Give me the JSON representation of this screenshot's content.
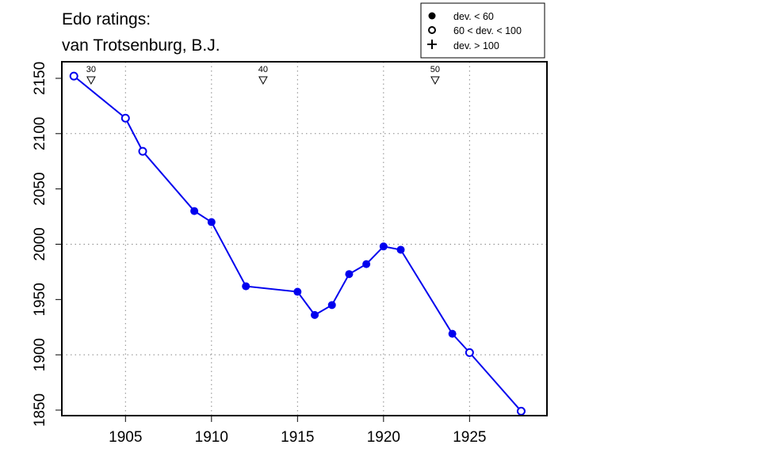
{
  "title_line1": "Edo ratings:",
  "title_line2": "van Trotsenburg, B.J.",
  "legend": {
    "items": [
      {
        "marker": "filled-circle",
        "label": "dev. < 60"
      },
      {
        "marker": "open-circle",
        "label": "60 < dev. < 100"
      },
      {
        "marker": "plus",
        "label": "dev. > 100"
      }
    ]
  },
  "colors": {
    "series": "#0000ee",
    "grid": "#888888",
    "axis": "#000000"
  },
  "chart_data": {
    "type": "line",
    "title": "Edo ratings: van Trotsenburg, B.J.",
    "xlabel": "",
    "ylabel": "",
    "xlim": [
      1901.3,
      1929.5
    ],
    "ylim": [
      1845,
      2165
    ],
    "x_ticks": [
      1905,
      1910,
      1915,
      1920,
      1925
    ],
    "y_ticks": [
      1850,
      1900,
      1950,
      2000,
      2050,
      2100,
      2150
    ],
    "grid": true,
    "legend_position": "top-right",
    "age_markers": [
      {
        "x": 1903,
        "label": "30"
      },
      {
        "x": 1913,
        "label": "40"
      },
      {
        "x": 1923,
        "label": "50"
      }
    ],
    "series": [
      {
        "points": [
          {
            "x": 1902,
            "y": 2152,
            "marker": "open"
          },
          {
            "x": 1905,
            "y": 2114,
            "marker": "open"
          },
          {
            "x": 1906,
            "y": 2084,
            "marker": "open"
          },
          {
            "x": 1909,
            "y": 2030,
            "marker": "filled"
          },
          {
            "x": 1910,
            "y": 2020,
            "marker": "filled"
          },
          {
            "x": 1912,
            "y": 1962,
            "marker": "filled"
          },
          {
            "x": 1915,
            "y": 1957,
            "marker": "filled"
          },
          {
            "x": 1916,
            "y": 1936,
            "marker": "filled"
          },
          {
            "x": 1917,
            "y": 1945,
            "marker": "filled"
          },
          {
            "x": 1918,
            "y": 1973,
            "marker": "filled"
          },
          {
            "x": 1919,
            "y": 1982,
            "marker": "filled"
          },
          {
            "x": 1920,
            "y": 1998,
            "marker": "filled"
          },
          {
            "x": 1921,
            "y": 1995,
            "marker": "filled"
          },
          {
            "x": 1924,
            "y": 1919,
            "marker": "filled"
          },
          {
            "x": 1925,
            "y": 1902,
            "marker": "open"
          },
          {
            "x": 1928,
            "y": 1849,
            "marker": "open"
          }
        ]
      }
    ]
  }
}
